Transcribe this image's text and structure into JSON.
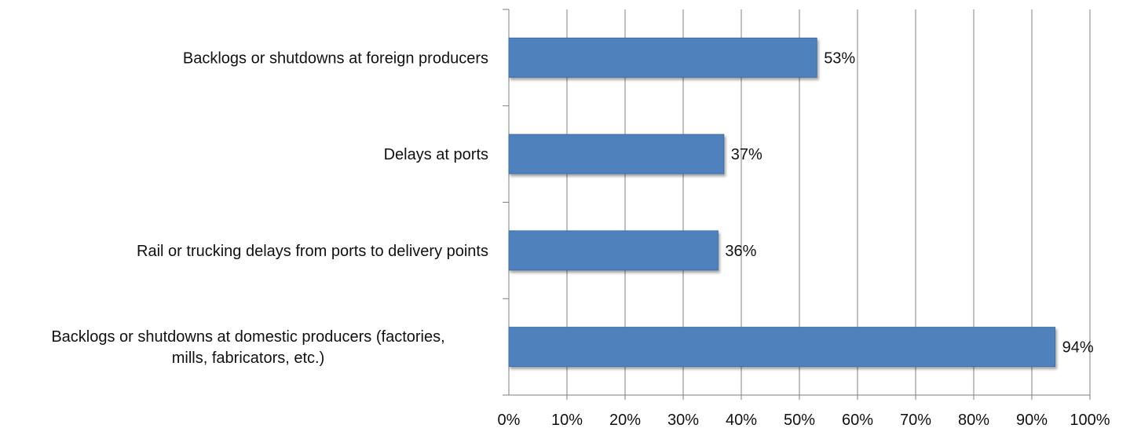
{
  "chart_data": {
    "type": "bar",
    "orientation": "horizontal",
    "categories": [
      [
        "Backlogs or shutdowns at foreign producers"
      ],
      [
        "Delays at ports"
      ],
      [
        "Rail or trucking delays from ports to delivery points"
      ],
      [
        "Backlogs or shutdowns at domestic producers (factories,",
        "mills, fabricators, etc.)"
      ]
    ],
    "values": [
      53,
      37,
      36,
      94
    ],
    "data_labels": [
      "53%",
      "37%",
      "36%",
      "94%"
    ],
    "x_ticks": [
      "0%",
      "10%",
      "20%",
      "30%",
      "40%",
      "50%",
      "60%",
      "70%",
      "80%",
      "90%",
      "100%"
    ],
    "xlim": [
      0,
      100
    ],
    "title": "",
    "xlabel": "",
    "ylabel": "",
    "grid": "vertical",
    "legend": "none",
    "bar_color": "#4f81bd",
    "bar_edge_color": "#3d6fa8",
    "grid_color": "#808080"
  }
}
